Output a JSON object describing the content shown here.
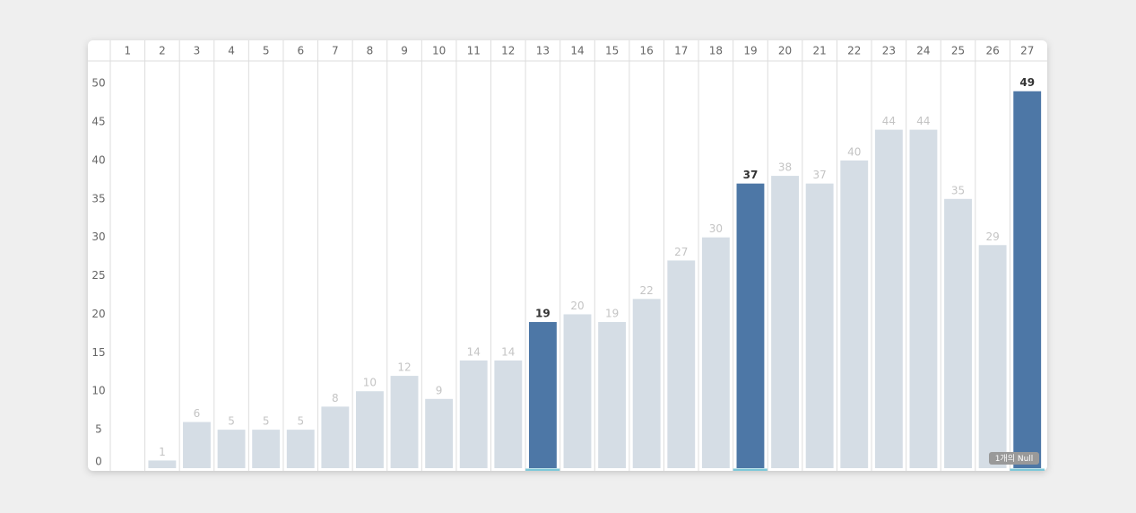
{
  "chart_data": {
    "type": "bar",
    "categories": [
      "1",
      "2",
      "3",
      "4",
      "5",
      "6",
      "7",
      "8",
      "9",
      "10",
      "11",
      "12",
      "13",
      "14",
      "15",
      "16",
      "17",
      "18",
      "19",
      "20",
      "21",
      "22",
      "23",
      "24",
      "25",
      "26",
      "27"
    ],
    "values": [
      null,
      1,
      6,
      5,
      5,
      5,
      8,
      10,
      12,
      9,
      14,
      14,
      19,
      20,
      19,
      22,
      27,
      30,
      37,
      38,
      37,
      40,
      44,
      44,
      35,
      29,
      49
    ],
    "colors": [
      "#d5dde5",
      "#d5dde5",
      "#d5dde5",
      "#d5dde5",
      "#d5dde5",
      "#d5dde5",
      "#d5dde5",
      "#d5dde5",
      "#d5dde5",
      "#d5dde5",
      "#d5dde5",
      "#d5dde5",
      "#4d77a6",
      "#d5dde5",
      "#d5dde5",
      "#d5dde5",
      "#d5dde5",
      "#d5dde5",
      "#4d77a6",
      "#d5dde5",
      "#d5dde5",
      "#d5dde5",
      "#d5dde5",
      "#d5dde5",
      "#d5dde5",
      "#d5dde5",
      "#4d77a6"
    ],
    "ylim": [
      0,
      52.7
    ],
    "yticks": [
      0,
      5,
      10,
      15,
      20,
      25,
      30,
      35,
      40,
      45,
      50
    ],
    "grid": true,
    "null_badge": "1개의 Null"
  }
}
